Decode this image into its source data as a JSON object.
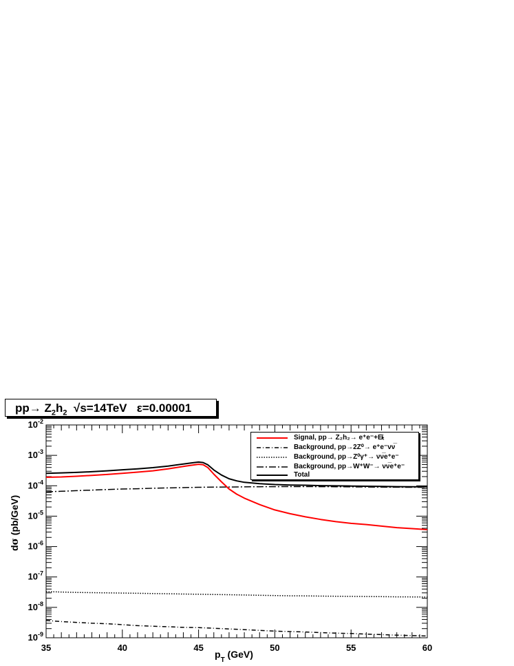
{
  "title": {
    "process": "pp→ Z",
    "sub1": "2",
    "h": "h",
    "sub2": "2",
    "energy": "√s=14TeV",
    "epsilon": "ε=0.00001"
  },
  "legend": [
    {
      "label": "Signal, pp→ Z₂h₂→ e⁺e⁻+E̸ₜ",
      "color": "#ff0000",
      "style": "solid"
    },
    {
      "label": "Background, pp→2Z⁰→ e⁺e⁻νν̅",
      "color": "#000000",
      "style": "dashdot"
    },
    {
      "label": "Background, pp→Z⁰γ⁺→ νν̅e⁺e⁻",
      "color": "#000000",
      "style": "dotted"
    },
    {
      "label": "Background, pp→W⁺W⁻→ νν̅e⁺e⁻",
      "color": "#000000",
      "style": "longdashdot"
    },
    {
      "label": "Total",
      "color": "#000000",
      "style": "solid"
    }
  ],
  "chart_data": {
    "type": "line",
    "xlabel": "p_T (GeV)",
    "ylabel": "dσ/dp_T (pb/GeV)",
    "xlim": [
      35,
      60
    ],
    "ylim": [
      1e-09,
      0.01
    ],
    "yscale": "log",
    "x_ticks": [
      35,
      40,
      45,
      50,
      55,
      60
    ],
    "y_ticks": [
      "10^-9",
      "10^-8",
      "10^-7",
      "10^-6",
      "10^-5",
      "10^-4",
      "10^-3",
      "10^-2"
    ],
    "legend_position": "top-right",
    "series": [
      {
        "name": "Signal, pp→ Z2h2→ e+e-+ET",
        "color": "#ff0000",
        "x": [
          35,
          36,
          37,
          38,
          39,
          40,
          41,
          42,
          43,
          44,
          44.5,
          45,
          45.3,
          45.6,
          46,
          46.5,
          47,
          47.5,
          48,
          49,
          50,
          51,
          52,
          53,
          54,
          55,
          56,
          57,
          58,
          59,
          60
        ],
        "y": [
          0.00019,
          0.000195,
          0.000205,
          0.00022,
          0.000235,
          0.000255,
          0.00028,
          0.00031,
          0.00036,
          0.00043,
          0.00047,
          0.00051,
          0.00049,
          0.0004,
          0.00024,
          0.000135,
          7.8e-05,
          5.3e-05,
          3.9e-05,
          2.4e-05,
          1.6e-05,
          1.2e-05,
          9.5e-06,
          7.8e-06,
          6.6e-06,
          5.8e-06,
          5.3e-06,
          4.7e-06,
          4.2e-06,
          3.9e-06,
          3.6e-06
        ]
      },
      {
        "name": "Background, pp→2Z0→ e+e-νν",
        "color": "#000000",
        "x": [
          35,
          36,
          37,
          38,
          39,
          40,
          41,
          42,
          43,
          44,
          45,
          46,
          47,
          48,
          49,
          50,
          51,
          52,
          53,
          54,
          55,
          56,
          57,
          58,
          59,
          60
        ],
        "y": [
          3.7e-09,
          3.4e-09,
          3.2e-09,
          3e-09,
          2.9e-09,
          2.7e-09,
          2.5e-09,
          2.4e-09,
          2.3e-09,
          2.2e-09,
          2.15e-09,
          2.05e-09,
          1.95e-09,
          1.85e-09,
          1.75e-09,
          1.65e-09,
          1.6e-09,
          1.55e-09,
          1.48e-09,
          1.42e-09,
          1.38e-09,
          1.32e-09,
          1.27e-09,
          1.22e-09,
          1.18e-09,
          1.14e-09
        ]
      },
      {
        "name": "Background, pp→Z0γ*→ ννe+e-",
        "color": "#000000",
        "x": [
          35,
          36,
          37,
          38,
          39,
          40,
          41,
          42,
          43,
          44,
          45,
          46,
          47,
          48,
          49,
          50,
          51,
          52,
          53,
          54,
          55,
          56,
          57,
          58,
          59,
          60
        ],
        "y": [
          3.3e-08,
          3.2e-08,
          3.1e-08,
          3.05e-08,
          3e-08,
          2.95e-08,
          2.9e-08,
          2.85e-08,
          2.8e-08,
          2.75e-08,
          2.7e-08,
          2.65e-08,
          2.6e-08,
          2.55e-08,
          2.5e-08,
          2.45e-08,
          2.4e-08,
          2.38e-08,
          2.35e-08,
          2.32e-08,
          2.3e-08,
          2.27e-08,
          2.25e-08,
          2.22e-08,
          2.2e-08,
          2.18e-08
        ]
      },
      {
        "name": "Background, pp→W+W-→ ννe+e-",
        "color": "#000000",
        "x": [
          35,
          36,
          37,
          38,
          39,
          40,
          41,
          42,
          43,
          44,
          45,
          46,
          47,
          48,
          49,
          50,
          51,
          52,
          53,
          54,
          55,
          56,
          57,
          58,
          59,
          60
        ],
        "y": [
          6.3e-05,
          6.6e-05,
          6.9e-05,
          7.2e-05,
          7.5e-05,
          7.8e-05,
          8e-05,
          8.3e-05,
          8.5e-05,
          8.7e-05,
          8.9e-05,
          9e-05,
          9.1e-05,
          9.2e-05,
          9.3e-05,
          9.35e-05,
          9.4e-05,
          9.4e-05,
          9.35e-05,
          9.3e-05,
          9.2e-05,
          9.1e-05,
          9e-05,
          8.95e-05,
          8.9e-05,
          8.85e-05
        ]
      },
      {
        "name": "Total",
        "color": "#000000",
        "x": [
          35,
          36,
          37,
          38,
          39,
          40,
          41,
          42,
          43,
          44,
          44.5,
          45,
          45.3,
          45.6,
          46,
          46.5,
          47,
          47.5,
          48,
          49,
          50,
          51,
          52,
          53,
          54,
          55,
          56,
          57,
          58,
          59,
          60
        ],
        "y": [
          0.000255,
          0.000265,
          0.000275,
          0.00029,
          0.00031,
          0.000335,
          0.00036,
          0.000395,
          0.000445,
          0.00052,
          0.00056,
          0.0006,
          0.00058,
          0.00049,
          0.00033,
          0.000225,
          0.00017,
          0.000145,
          0.00013,
          0.000117,
          0.00011,
          0.000106,
          0.000104,
          0.000101,
          9.95e-05,
          9.8e-05,
          9.65e-05,
          9.5e-05,
          9.35e-05,
          9.25e-05,
          9.2e-05
        ]
      }
    ]
  }
}
